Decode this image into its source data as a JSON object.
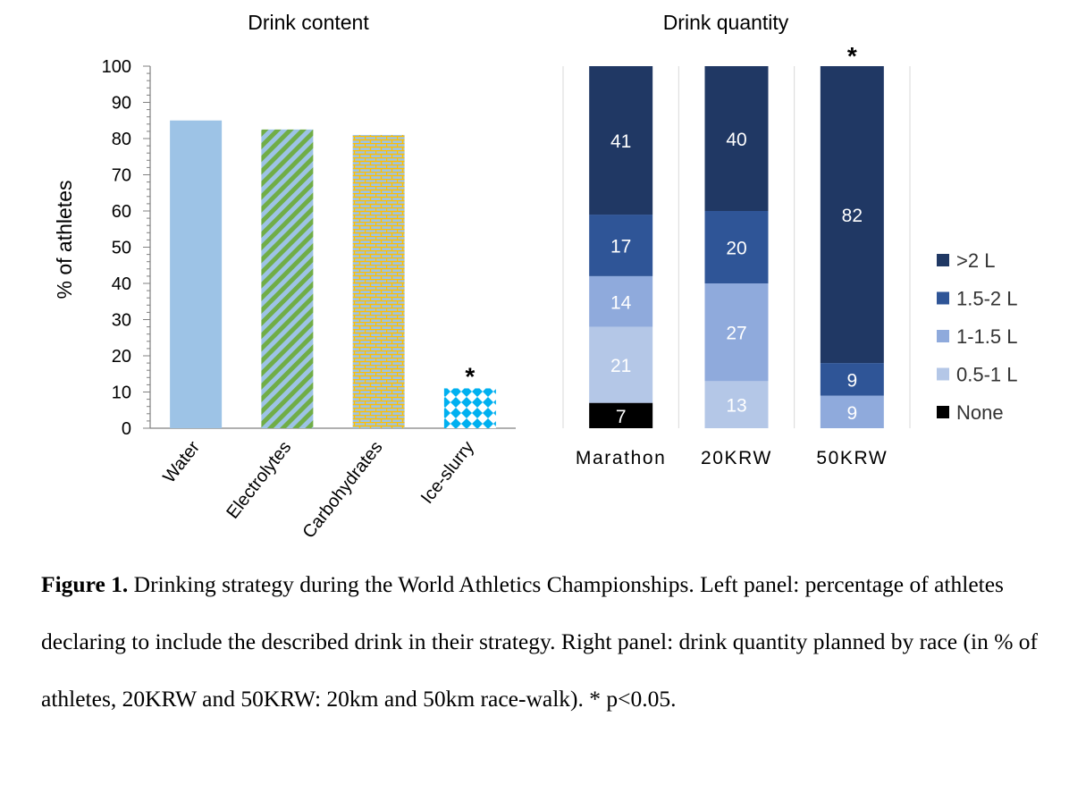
{
  "chart_data": [
    {
      "type": "bar",
      "title": "Drink content",
      "xlabel": "",
      "ylabel": "% of athletes",
      "ylim": [
        0,
        100
      ],
      "yticks": [
        0,
        10,
        20,
        30,
        40,
        50,
        60,
        70,
        80,
        90,
        100
      ],
      "categories": [
        "Water",
        "Electrolytes",
        "Carbohydrates",
        "Ice-slurry"
      ],
      "values": [
        85,
        82.5,
        81,
        11
      ],
      "patterns": [
        "solid",
        "diagonal-stripes",
        "brick",
        "diamonds"
      ],
      "colors": [
        "#9dc3e6",
        "#70ad47",
        "#ffc000",
        "#00b0f0"
      ],
      "significance_marks": [
        "",
        "",
        "",
        "*"
      ],
      "grid": false
    },
    {
      "type": "bar",
      "stacked": true,
      "title": "Drink quantity",
      "xlabel": "",
      "ylabel": "",
      "ylim": [
        0,
        100
      ],
      "categories": [
        "Marathon",
        "20KRW",
        "50KRW"
      ],
      "series": [
        {
          "name": "None",
          "color": "#000000",
          "values": [
            7,
            0,
            0
          ]
        },
        {
          "name": "0.5-1 L",
          "color": "#b4c7e7",
          "values": [
            21,
            13,
            0
          ]
        },
        {
          "name": "1-1.5 L",
          "color": "#8faadc",
          "values": [
            14,
            27,
            9
          ]
        },
        {
          "name": "1.5-2 L",
          "color": "#2f5597",
          "values": [
            17,
            20,
            9
          ]
        },
        {
          "name": ">2 L",
          "color": "#203864",
          "values": [
            41,
            40,
            82
          ]
        }
      ],
      "legend_order": [
        ">2 L",
        "1.5-2 L",
        "1-1.5 L",
        "0.5-1 L",
        "None"
      ],
      "legend_position": "right",
      "significance_marks": [
        "",
        "",
        "*"
      ],
      "grid": "vertical category separators"
    }
  ],
  "caption": {
    "label": "Figure 1.",
    "text": " Drinking strategy during the World Athletics Championships. Left panel: percentage of athletes declaring to include the described drink in their strategy. Right panel: drink quantity planned by race (in % of athletes, 20KRW and 50KRW: 20km and 50km race-walk). * p<0.05."
  }
}
